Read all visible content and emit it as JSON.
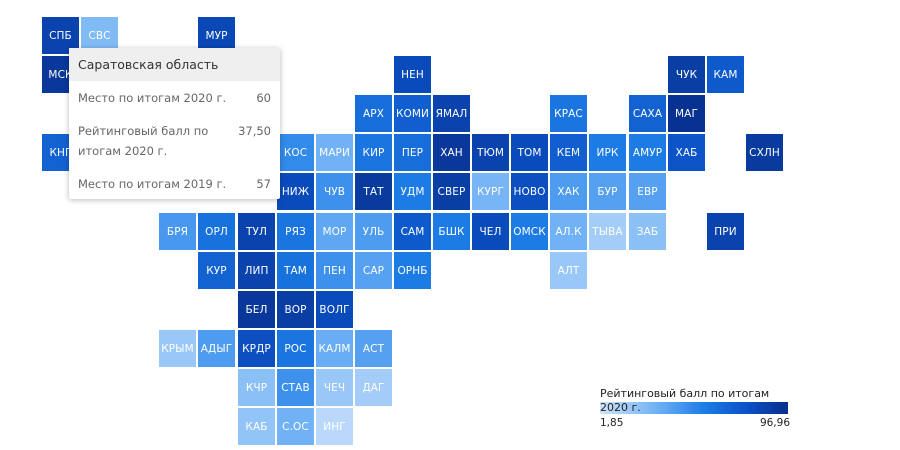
{
  "chart_data": {
    "type": "heatmap",
    "legend": {
      "title": "Рейтинговый балл по итогам 2020 г.",
      "min_label": "1,85",
      "max_label": "96,96",
      "min": 1.85,
      "max": 96.96,
      "color_low": "#cfe4fb",
      "color_high": "#082f8c",
      "placement": "bottom-right"
    },
    "tooltip": {
      "title": "Саратовская область",
      "rows": [
        {
          "label": "Место по итогам 2020 г.",
          "value": "60"
        },
        {
          "label": "Рейтинговый балл по итогам 2020 г.",
          "value": "37,50"
        },
        {
          "label": "Место по итогам 2019 г.",
          "value": "57"
        }
      ]
    },
    "regions": [
      {
        "label": "СПБ",
        "col": 0,
        "row": 0,
        "value": 85
      },
      {
        "label": "СВС",
        "col": 1,
        "row": 0,
        "value": 25
      },
      {
        "label": "МУР",
        "col": 4,
        "row": 0,
        "value": 82
      },
      {
        "label": "МСК",
        "col": 0,
        "row": 1,
        "value": 92
      },
      {
        "label": "НЕН",
        "col": 9,
        "row": 1,
        "value": 80
      },
      {
        "label": "ЧУК",
        "col": 16,
        "row": 1,
        "value": 88
      },
      {
        "label": "КАМ",
        "col": 17,
        "row": 1,
        "value": 72
      },
      {
        "label": "АРХ",
        "col": 8,
        "row": 2,
        "value": 62
      },
      {
        "label": "КОМИ",
        "col": 9,
        "row": 2,
        "value": 70
      },
      {
        "label": "ЯМАЛ",
        "col": 10,
        "row": 2,
        "value": 85
      },
      {
        "label": "КРАС",
        "col": 13,
        "row": 2,
        "value": 58
      },
      {
        "label": "САХА",
        "col": 15,
        "row": 2,
        "value": 68
      },
      {
        "label": "МАГ",
        "col": 16,
        "row": 2,
        "value": 95
      },
      {
        "label": "КНГ",
        "col": 0,
        "row": 3,
        "value": 68
      },
      {
        "label": "КОС",
        "col": 6,
        "row": 3,
        "value": 48
      },
      {
        "label": "МАРИ",
        "col": 7,
        "row": 3,
        "value": 30
      },
      {
        "label": "КИР",
        "col": 8,
        "row": 3,
        "value": 58
      },
      {
        "label": "ПЕР",
        "col": 9,
        "row": 3,
        "value": 62
      },
      {
        "label": "ХАН",
        "col": 10,
        "row": 3,
        "value": 92
      },
      {
        "label": "ТЮМ",
        "col": 11,
        "row": 3,
        "value": 85
      },
      {
        "label": "ТОМ",
        "col": 12,
        "row": 3,
        "value": 80
      },
      {
        "label": "КЕМ",
        "col": 13,
        "row": 3,
        "value": 70
      },
      {
        "label": "ИРК",
        "col": 14,
        "row": 3,
        "value": 55
      },
      {
        "label": "АМУР",
        "col": 15,
        "row": 3,
        "value": 55
      },
      {
        "label": "ХАБ",
        "col": 16,
        "row": 3,
        "value": 75
      },
      {
        "label": "СХЛН",
        "col": 18,
        "row": 3,
        "value": 90
      },
      {
        "label": "НИЖ",
        "col": 6,
        "row": 4,
        "value": 80
      },
      {
        "label": "ЧУВ",
        "col": 7,
        "row": 4,
        "value": 45
      },
      {
        "label": "ТАТ",
        "col": 8,
        "row": 4,
        "value": 90
      },
      {
        "label": "УДМ",
        "col": 9,
        "row": 4,
        "value": 55
      },
      {
        "label": "СВЕР",
        "col": 10,
        "row": 4,
        "value": 88
      },
      {
        "label": "КУРГ",
        "col": 11,
        "row": 4,
        "value": 28
      },
      {
        "label": "НОВО",
        "col": 12,
        "row": 4,
        "value": 78
      },
      {
        "label": "ХАК",
        "col": 13,
        "row": 4,
        "value": 40
      },
      {
        "label": "БУР",
        "col": 14,
        "row": 4,
        "value": 38
      },
      {
        "label": "ЕВР",
        "col": 15,
        "row": 4,
        "value": 38
      },
      {
        "label": "БРЯ",
        "col": 3,
        "row": 5,
        "value": 42
      },
      {
        "label": "ОРЛ",
        "col": 4,
        "row": 5,
        "value": 60
      },
      {
        "label": "ТУЛ",
        "col": 5,
        "row": 5,
        "value": 85
      },
      {
        "label": "РЯЗ",
        "col": 6,
        "row": 5,
        "value": 58
      },
      {
        "label": "МОР",
        "col": 7,
        "row": 5,
        "value": 35
      },
      {
        "label": "УЛЬ",
        "col": 8,
        "row": 5,
        "value": 40
      },
      {
        "label": "САМ",
        "col": 9,
        "row": 5,
        "value": 72
      },
      {
        "label": "БШК",
        "col": 10,
        "row": 5,
        "value": 55
      },
      {
        "label": "ЧЕЛ",
        "col": 11,
        "row": 5,
        "value": 80
      },
      {
        "label": "ОМСК",
        "col": 12,
        "row": 5,
        "value": 55
      },
      {
        "label": "АЛ.К",
        "col": 13,
        "row": 5,
        "value": 30
      },
      {
        "label": "ТЫВА",
        "col": 14,
        "row": 5,
        "value": 15
      },
      {
        "label": "ЗАБ",
        "col": 15,
        "row": 5,
        "value": 22
      },
      {
        "label": "ПРИ",
        "col": 17,
        "row": 5,
        "value": 85
      },
      {
        "label": "КУР",
        "col": 4,
        "row": 6,
        "value": 68
      },
      {
        "label": "ЛИП",
        "col": 5,
        "row": 6,
        "value": 85
      },
      {
        "label": "ТАМ",
        "col": 6,
        "row": 6,
        "value": 60
      },
      {
        "label": "ПЕН",
        "col": 7,
        "row": 6,
        "value": 45
      },
      {
        "label": "САР",
        "col": 8,
        "row": 6,
        "value": 37.5
      },
      {
        "label": "ОРНБ",
        "col": 9,
        "row": 6,
        "value": 55
      },
      {
        "label": "АЛТ",
        "col": 13,
        "row": 6,
        "value": 18
      },
      {
        "label": "БЕЛ",
        "col": 5,
        "row": 7,
        "value": 92
      },
      {
        "label": "ВОР",
        "col": 6,
        "row": 7,
        "value": 88
      },
      {
        "label": "ВОЛГ",
        "col": 7,
        "row": 7,
        "value": 80
      },
      {
        "label": "КРЫМ",
        "col": 3,
        "row": 8,
        "value": 18
      },
      {
        "label": "АДЫГ",
        "col": 4,
        "row": 8,
        "value": 40
      },
      {
        "label": "КРДР",
        "col": 5,
        "row": 8,
        "value": 78
      },
      {
        "label": "РОС",
        "col": 6,
        "row": 8,
        "value": 58
      },
      {
        "label": "КАЛМ",
        "col": 7,
        "row": 8,
        "value": 32
      },
      {
        "label": "АСТ",
        "col": 8,
        "row": 8,
        "value": 38
      },
      {
        "label": "КЧР",
        "col": 5,
        "row": 9,
        "value": 22
      },
      {
        "label": "СТАВ",
        "col": 6,
        "row": 9,
        "value": 45
      },
      {
        "label": "ЧЕЧ",
        "col": 7,
        "row": 9,
        "value": 18
      },
      {
        "label": "ДАГ",
        "col": 8,
        "row": 9,
        "value": 15
      },
      {
        "label": "КАБ",
        "col": 5,
        "row": 10,
        "value": 20
      },
      {
        "label": "С.ОС",
        "col": 6,
        "row": 10,
        "value": 30
      },
      {
        "label": "ИНГ",
        "col": 7,
        "row": 10,
        "value": 8
      }
    ]
  }
}
